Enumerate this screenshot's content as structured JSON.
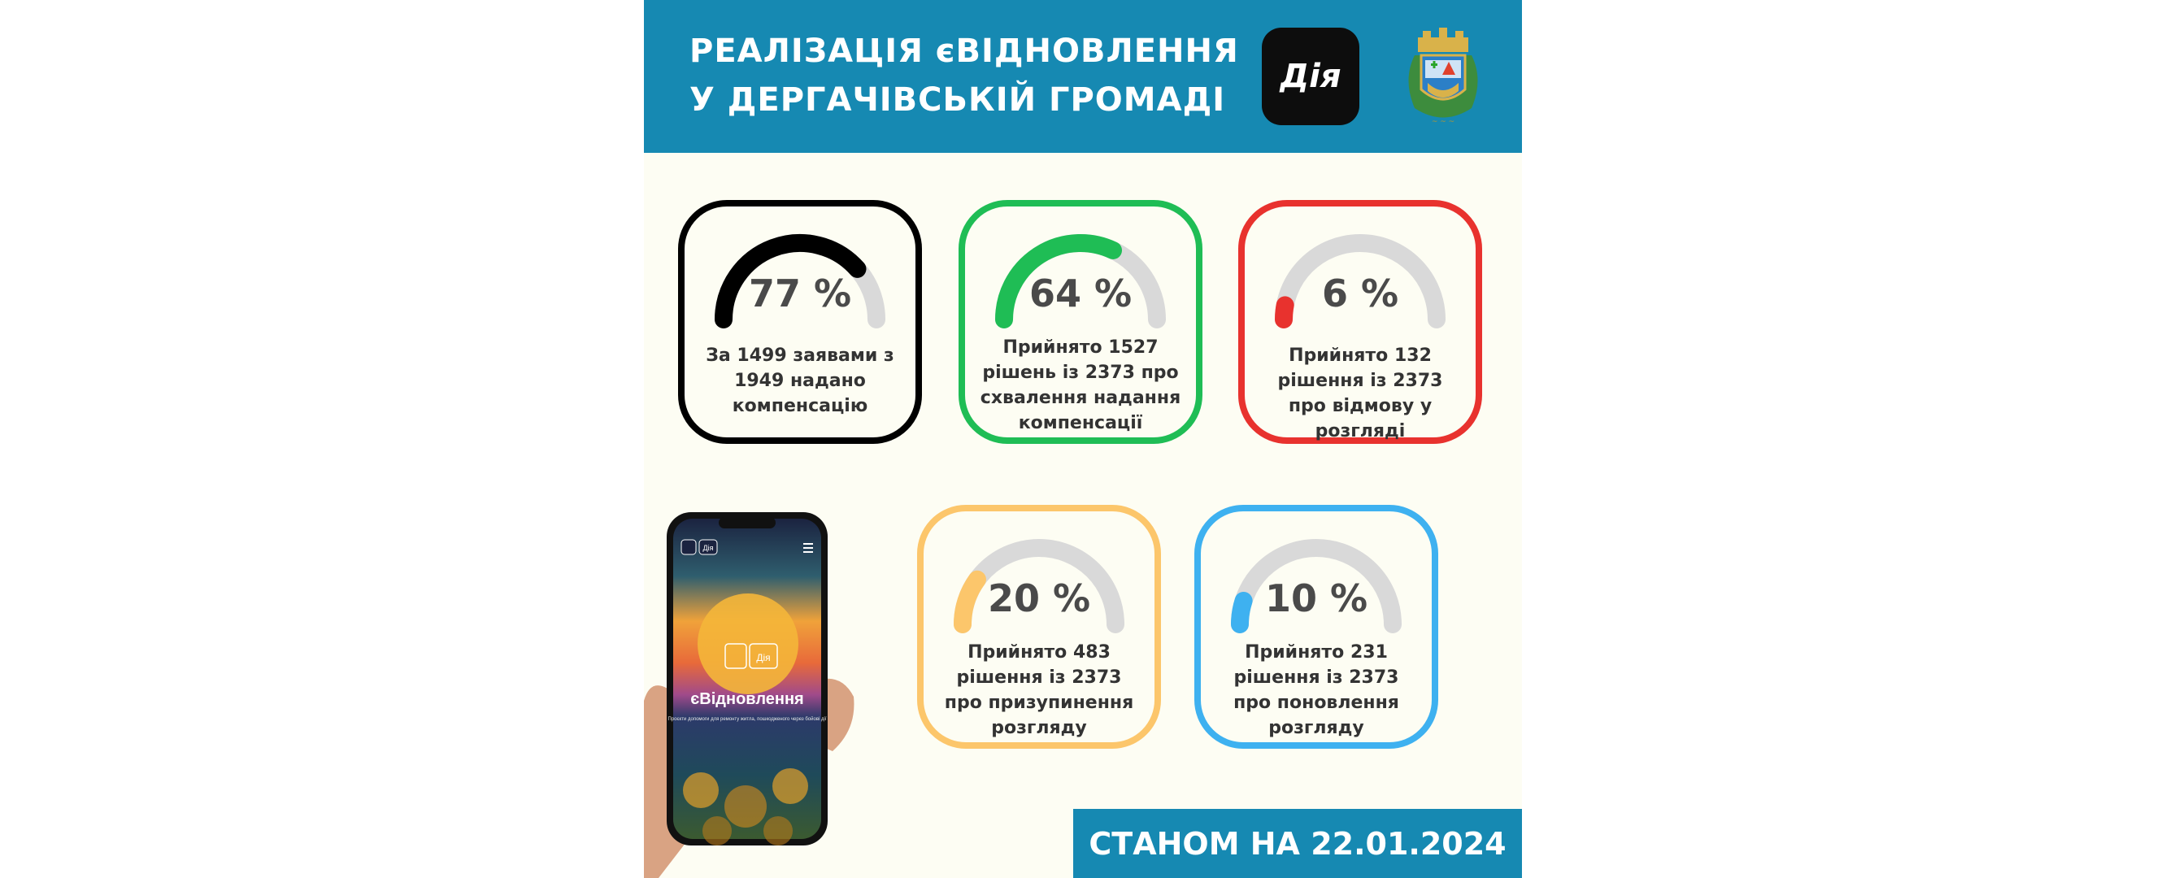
{
  "header": {
    "title_line1": "РЕАЛІЗАЦІЯ єВІДНОВЛЕННЯ",
    "title_line2": "У ДЕРГАЧІВСЬКІЙ ГРОМАДІ",
    "diia_logo": "Дія"
  },
  "cards": [
    {
      "percent_value": 77,
      "percent": "77 %",
      "text": "За 1499 заявами з 1949 надано компенсацію",
      "color": "#000000"
    },
    {
      "percent_value": 64,
      "percent": "64 %",
      "text": "Прийнято 1527 рішень із 2373 про схвалення надання компенсації",
      "color": "#1fbd55"
    },
    {
      "percent_value": 6,
      "percent": "6 %",
      "text": "Прийнято 132 рішення із 2373 про відмову у розгляді",
      "color": "#e8322e"
    },
    {
      "percent_value": 20,
      "percent": "20 %",
      "text": "Прийнято 483 рішення із 2373 про призупинення розгляду",
      "color": "#fcc66b"
    },
    {
      "percent_value": 10,
      "percent": "10 %",
      "text": "Прийнято 231 рішення із 2373 про поновлення розгляду",
      "color": "#3eb1f0"
    }
  ],
  "phone": {
    "diia_badge": "Дія",
    "app_logo": "Дія",
    "app_title": "єВідновлення",
    "app_subtitle": "Проєкти допомоги для ремонту житла, пошкодженого через бойові дії"
  },
  "footer": {
    "date_text": "СТАНОМ НА 22.01.2024"
  },
  "colors": {
    "header_bg": "#1689b2",
    "page_bg": "#fdfdf3",
    "gauge_track": "#d9d9d9"
  }
}
